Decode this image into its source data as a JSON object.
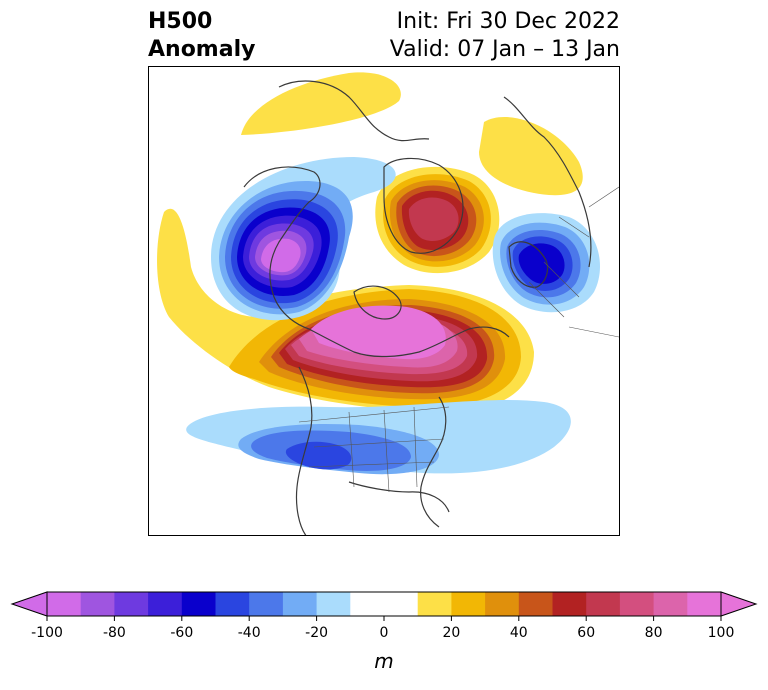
{
  "header": {
    "title_line1": "H500",
    "title_line2": "Anomaly",
    "init": "Init: Fri 30 Dec 2022",
    "valid": "Valid: 07 Jan – 13 Jan"
  },
  "colorbar": {
    "unit": "m",
    "ticks": [
      "-100",
      "-80",
      "-60",
      "-40",
      "-20",
      "0",
      "20",
      "40",
      "60",
      "80",
      "100"
    ],
    "bins": [
      {
        "from": -100,
        "to": -90,
        "color": "#d16be8"
      },
      {
        "from": -90,
        "to": -80,
        "color": "#9f55e0"
      },
      {
        "from": -80,
        "to": -70,
        "color": "#6e3ae0"
      },
      {
        "from": -70,
        "to": -60,
        "color": "#3c1fd9"
      },
      {
        "from": -60,
        "to": -50,
        "color": "#0a00cc"
      },
      {
        "from": -50,
        "to": -40,
        "color": "#2a45e0"
      },
      {
        "from": -40,
        "to": -30,
        "color": "#4c78ea"
      },
      {
        "from": -30,
        "to": -20,
        "color": "#72acf5"
      },
      {
        "from": -20,
        "to": -10,
        "color": "#aadcfc"
      },
      {
        "from": -10,
        "to": 10,
        "color": "#ffffff"
      },
      {
        "from": 10,
        "to": 20,
        "color": "#fde047"
      },
      {
        "from": 20,
        "to": 30,
        "color": "#f2b705"
      },
      {
        "from": 30,
        "to": 40,
        "color": "#e0900c"
      },
      {
        "from": 40,
        "to": 50,
        "color": "#c8551a"
      },
      {
        "from": 50,
        "to": 60,
        "color": "#b22222"
      },
      {
        "from": 60,
        "to": 70,
        "color": "#c2384f"
      },
      {
        "from": 70,
        "to": 80,
        "color": "#d34f7f"
      },
      {
        "from": 80,
        "to": 90,
        "color": "#dc64ab"
      },
      {
        "from": 90,
        "to": 100,
        "color": "#e673d9"
      }
    ],
    "under_color": "#d16be8",
    "over_color": "#e673d9"
  }
}
